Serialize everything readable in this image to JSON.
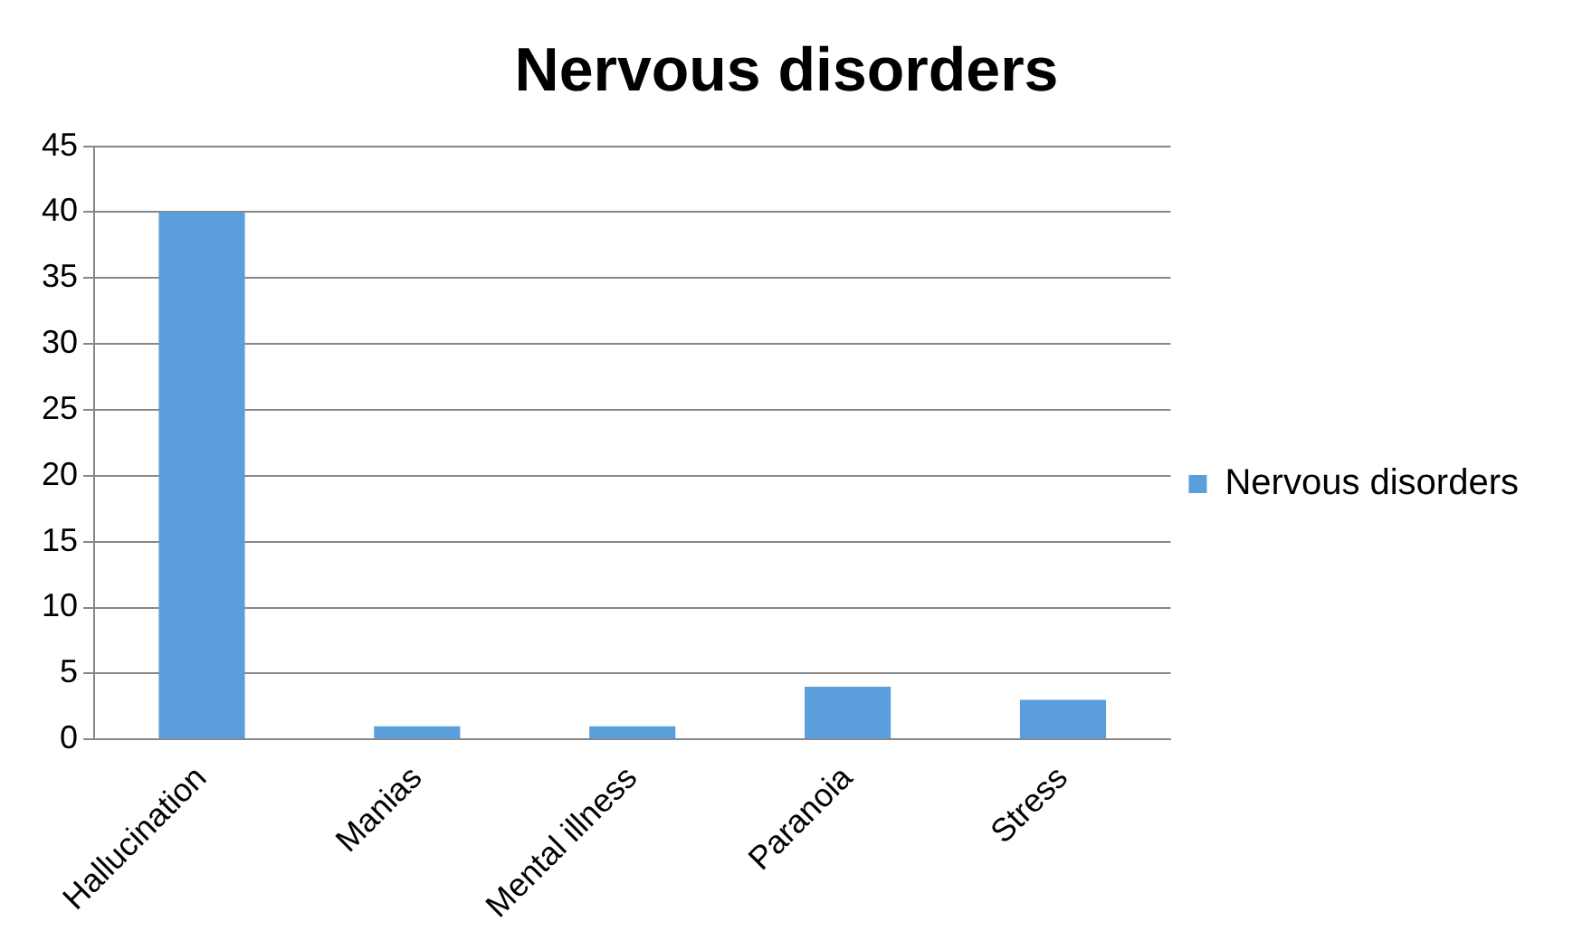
{
  "chart_data": {
    "type": "bar",
    "title": "Nervous disorders",
    "categories": [
      "Hallucination",
      "Manias",
      "Mental illness",
      "Paranoia",
      "Stress"
    ],
    "series": [
      {
        "name": "Nervous disorders",
        "color": "#5a9fdb",
        "values": [
          40,
          1,
          1,
          4,
          3
        ]
      }
    ],
    "ylim": [
      0,
      45
    ],
    "yticks": [
      0,
      5,
      10,
      15,
      20,
      25,
      30,
      35,
      40,
      45
    ],
    "grid": "y",
    "legend": "right"
  }
}
